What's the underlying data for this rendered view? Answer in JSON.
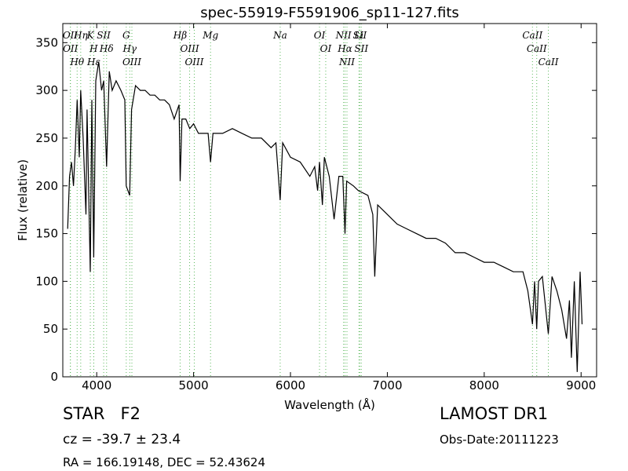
{
  "chart_data": {
    "type": "line",
    "title": "spec-55919-F5591906_sp11-127.fits",
    "xlabel": "Wavelength (Å)",
    "ylabel": "Flux (relative)",
    "xlim": [
      3650,
      9160
    ],
    "ylim": [
      0,
      370
    ],
    "xticks": [
      4000,
      5000,
      6000,
      7000,
      8000,
      9000
    ],
    "yticks": [
      0,
      50,
      100,
      150,
      200,
      250,
      300,
      350
    ],
    "series": [
      {
        "color": "#000000",
        "x": [
          3700,
          3720,
          3740,
          3760,
          3780,
          3798,
          3820,
          3835,
          3860,
          3889,
          3900,
          3934,
          3950,
          3969,
          3990,
          4020,
          4050,
          4072,
          4102,
          4130,
          4160,
          4200,
          4250,
          4290,
          4305,
          4340,
          4360,
          4400,
          4450,
          4500,
          4550,
          4600,
          4650,
          4700,
          4750,
          4800,
          4850,
          4861,
          4880,
          4920,
          4960,
          5000,
          5050,
          5100,
          5150,
          5175,
          5200,
          5300,
          5400,
          5500,
          5600,
          5700,
          5800,
          5850,
          5894,
          5920,
          6000,
          6100,
          6200,
          6250,
          6280,
          6300,
          6330,
          6350,
          6400,
          6450,
          6500,
          6540,
          6563,
          6580,
          6650,
          6700,
          6800,
          6850,
          6870,
          6900,
          6950,
          7000,
          7100,
          7200,
          7300,
          7400,
          7500,
          7600,
          7700,
          7800,
          7900,
          8000,
          8100,
          8200,
          8300,
          8400,
          8450,
          8498,
          8520,
          8542,
          8560,
          8600,
          8662,
          8700,
          8750,
          8800,
          8850,
          8880,
          8900,
          8930,
          8960,
          8990,
          9010
        ],
        "values": [
          155,
          210,
          225,
          200,
          240,
          290,
          230,
          300,
          250,
          170,
          280,
          110,
          290,
          125,
          310,
          330,
          300,
          310,
          220,
          320,
          300,
          310,
          300,
          290,
          200,
          190,
          280,
          305,
          300,
          300,
          295,
          295,
          290,
          290,
          285,
          270,
          285,
          205,
          270,
          270,
          260,
          265,
          255,
          255,
          255,
          225,
          255,
          255,
          260,
          255,
          250,
          250,
          240,
          245,
          185,
          245,
          230,
          225,
          210,
          220,
          195,
          225,
          180,
          230,
          210,
          165,
          210,
          210,
          150,
          205,
          200,
          195,
          190,
          170,
          105,
          180,
          175,
          170,
          160,
          155,
          150,
          145,
          145,
          140,
          130,
          130,
          125,
          120,
          120,
          115,
          110,
          110,
          90,
          55,
          100,
          50,
          100,
          105,
          45,
          105,
          90,
          70,
          40,
          80,
          20,
          100,
          5,
          110,
          55
        ]
      }
    ],
    "line_markers": {
      "color": "#5cb85c",
      "lines": [
        {
          "x": 3727,
          "label": "OII"
        },
        {
          "x": 3729,
          "label": "OII"
        },
        {
          "x": 3798,
          "label": "Hθ"
        },
        {
          "x": 3835,
          "label": "Hη"
        },
        {
          "x": 3934,
          "label": "K"
        },
        {
          "x": 3969,
          "label": "H"
        },
        {
          "x": 3970,
          "label": "Hε"
        },
        {
          "x": 4072,
          "label": "SII"
        },
        {
          "x": 4102,
          "label": "Hδ"
        },
        {
          "x": 4305,
          "label": "G"
        },
        {
          "x": 4341,
          "label": "Hγ"
        },
        {
          "x": 4363,
          "label": "OIII"
        },
        {
          "x": 4861,
          "label": "Hβ"
        },
        {
          "x": 4959,
          "label": "OIII"
        },
        {
          "x": 5007,
          "label": "OIII"
        },
        {
          "x": 5175,
          "label": "Mg"
        },
        {
          "x": 5894,
          "label": "Na"
        },
        {
          "x": 6300,
          "label": "OI"
        },
        {
          "x": 6364,
          "label": "OI"
        },
        {
          "x": 6548,
          "label": "NII"
        },
        {
          "x": 6563,
          "label": "Hα"
        },
        {
          "x": 6583,
          "label": "NII"
        },
        {
          "x": 6707,
          "label": "Li"
        },
        {
          "x": 6716,
          "label": "SII"
        },
        {
          "x": 6731,
          "label": "SII"
        },
        {
          "x": 8498,
          "label": "CaII"
        },
        {
          "x": 8542,
          "label": "CaII"
        },
        {
          "x": 8662,
          "label": "CaII"
        }
      ]
    }
  },
  "info": {
    "class": "STAR   F2",
    "cz": "cz = -39.7 ± 23.4",
    "coords": "RA = 166.19148, DEC = 52.43624",
    "survey": "LAMOST DR1",
    "date": "Obs-Date:20111223"
  }
}
